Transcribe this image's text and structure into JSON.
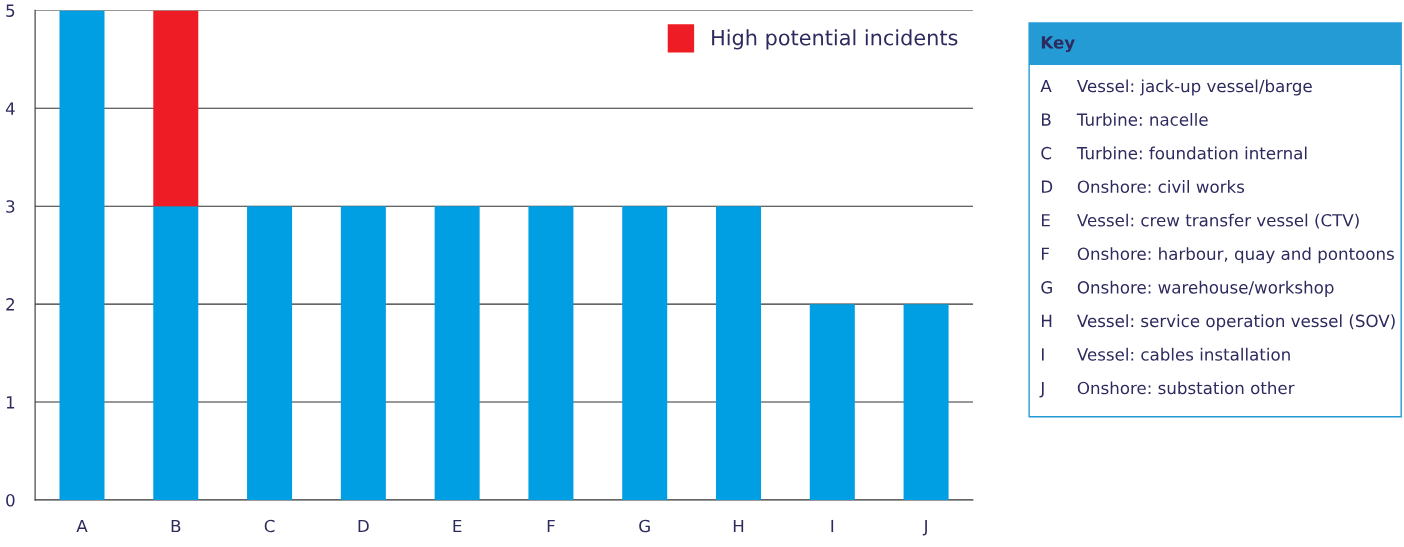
{
  "chart_data": {
    "type": "bar",
    "stacked": true,
    "categories": [
      "A",
      "B",
      "C",
      "D",
      "E",
      "F",
      "G",
      "H",
      "I",
      "J"
    ],
    "series": [
      {
        "color": "#009fe3",
        "values": [
          5,
          3,
          3,
          3,
          3,
          3,
          3,
          3,
          2,
          2
        ]
      },
      {
        "name": "High potential incidents",
        "color": "#ee1c25",
        "values": [
          null,
          2,
          null,
          null,
          null,
          null,
          null,
          null,
          null,
          null
        ]
      }
    ],
    "ylim": [
      0,
      5
    ],
    "yticks": [
      0,
      1,
      2,
      3,
      4,
      5
    ],
    "grid": "y",
    "legend": "top right",
    "annotations": [
      "Key",
      "A Vessel: jack-up vessel/barge",
      "B Turbine: nacelle",
      "C Turbine: foundation internal",
      "D Onshore: civil works",
      "E Vessel: crew transfer vessel (CTV)",
      "F Onshore: harbour, quay and pontoons",
      "G Onshore: warehouse/workshop",
      "H Vessel: service operation vessel (SOV)",
      "I Vessel: cables installation",
      "J Onshore: substation other"
    ]
  }
}
